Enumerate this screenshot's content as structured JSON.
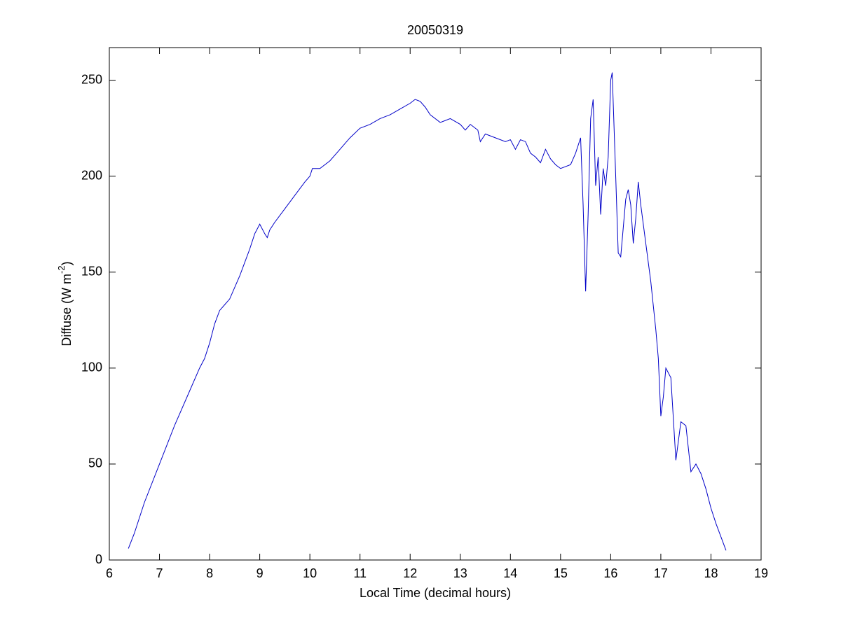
{
  "chart_data": {
    "type": "line",
    "title": "20050319",
    "xlabel": "Local Time (decimal hours)",
    "ylabel": [
      "Diffuse (W m",
      "-2",
      ")"
    ],
    "xlim": [
      6,
      19
    ],
    "xticks": [
      6,
      7,
      8,
      9,
      10,
      11,
      12,
      13,
      14,
      15,
      16,
      17,
      18,
      19
    ],
    "ylim": [
      0,
      267
    ],
    "yticks": [
      0,
      50,
      100,
      150,
      200,
      250
    ],
    "grid": false,
    "x": [
      6.38,
      6.5,
      6.7,
      7.0,
      7.3,
      7.6,
      7.8,
      7.9,
      8.0,
      8.1,
      8.2,
      8.3,
      8.4,
      8.5,
      8.6,
      8.7,
      8.8,
      8.9,
      9.0,
      9.1,
      9.15,
      9.2,
      9.3,
      9.5,
      9.7,
      9.9,
      10.0,
      10.05,
      10.2,
      10.4,
      10.6,
      10.8,
      11.0,
      11.2,
      11.4,
      11.6,
      11.8,
      12.0,
      12.1,
      12.2,
      12.3,
      12.4,
      12.6,
      12.8,
      13.0,
      13.1,
      13.2,
      13.35,
      13.4,
      13.5,
      13.7,
      13.9,
      14.0,
      14.1,
      14.2,
      14.3,
      14.4,
      14.5,
      14.6,
      14.7,
      14.8,
      14.9,
      15.0,
      15.2,
      15.3,
      15.4,
      15.45,
      15.5,
      15.55,
      15.6,
      15.65,
      15.7,
      15.75,
      15.8,
      15.85,
      15.9,
      15.95,
      16.0,
      16.03,
      16.1,
      16.15,
      16.2,
      16.3,
      16.35,
      16.4,
      16.45,
      16.5,
      16.55,
      16.6,
      16.7,
      16.8,
      16.9,
      16.95,
      17.0,
      17.05,
      17.1,
      17.2,
      17.3,
      17.35,
      17.4,
      17.5,
      17.6,
      17.7,
      17.8,
      17.9,
      18.0,
      18.1,
      18.2,
      18.3
    ],
    "series": [
      {
        "color": "#0000c8",
        "values": [
          6,
          14,
          30,
          50,
          70,
          88,
          100,
          105,
          113,
          123,
          130,
          133,
          136,
          142,
          148,
          155,
          162,
          170,
          175,
          170,
          168,
          172,
          176,
          183,
          190,
          197,
          200,
          204,
          204,
          208,
          214,
          220,
          225,
          227,
          230,
          232,
          235,
          238,
          240,
          239,
          236,
          232,
          228,
          230,
          227,
          224,
          227,
          224,
          218,
          222,
          220,
          218,
          219,
          214,
          219,
          218,
          212,
          210,
          207,
          214,
          209,
          206,
          204,
          206,
          212,
          220,
          185,
          140,
          180,
          230,
          240,
          195,
          210,
          180,
          204,
          195,
          210,
          250,
          254,
          200,
          160,
          158,
          188,
          193,
          185,
          165,
          178,
          197,
          185,
          165,
          145,
          120,
          105,
          75,
          85,
          100,
          95,
          52,
          62,
          72,
          70,
          46,
          50,
          45,
          37,
          27,
          19,
          12,
          5
        ]
      }
    ]
  }
}
